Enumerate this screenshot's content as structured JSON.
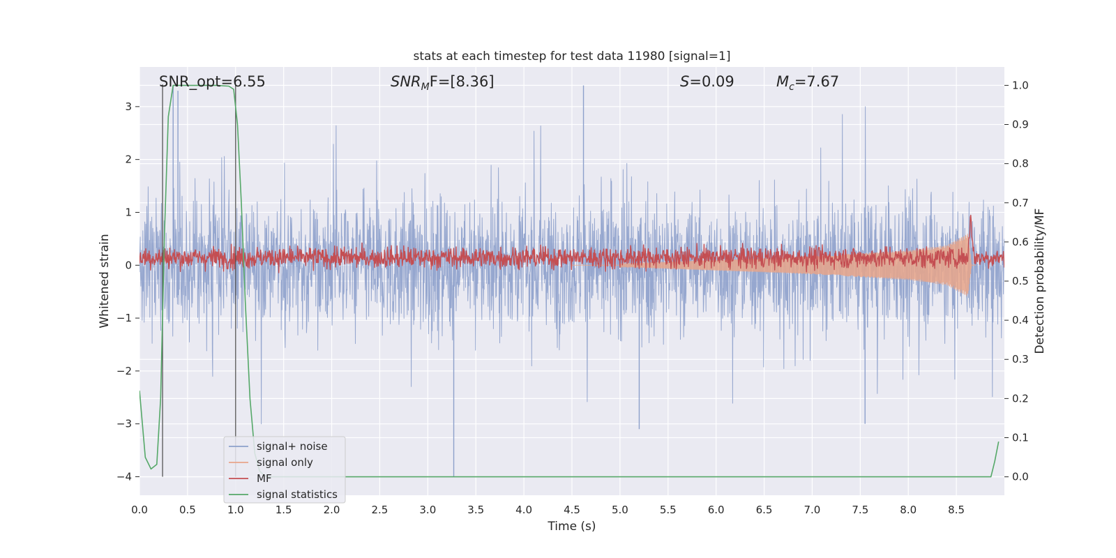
{
  "chart_data": {
    "type": "line",
    "title": "stats at each timestep for test data 11980 [signal=1]",
    "xlabel": "Time (s)",
    "ylabel": "Whitened strain",
    "y2label": "Detection probability/MF",
    "xlim": [
      0.0,
      9.0
    ],
    "ylim": [
      -4.35,
      3.75
    ],
    "y2lim": [
      -0.047,
      1.047
    ],
    "xticks": [
      "0.0",
      "0.5",
      "1.0",
      "1.5",
      "2.0",
      "2.5",
      "3.0",
      "3.5",
      "4.0",
      "4.5",
      "5.0",
      "5.5",
      "6.0",
      "6.5",
      "7.0",
      "7.5",
      "8.0",
      "8.5"
    ],
    "xtick_values": [
      0.0,
      0.5,
      1.0,
      1.5,
      2.0,
      2.5,
      3.0,
      3.5,
      4.0,
      4.5,
      5.0,
      5.5,
      6.0,
      6.5,
      7.0,
      7.5,
      8.0,
      8.5
    ],
    "yticks": [
      "3",
      "2",
      "1",
      "0",
      "−1",
      "−2",
      "−3",
      "−4"
    ],
    "ytick_values": [
      3,
      2,
      1,
      0,
      -1,
      -2,
      -3,
      -4
    ],
    "y2ticks": [
      "1.0",
      "0.9",
      "0.8",
      "0.7",
      "0.6",
      "0.5",
      "0.4",
      "0.3",
      "0.2",
      "0.1",
      "0.0"
    ],
    "y2tick_values": [
      1.0,
      0.9,
      0.8,
      0.7,
      0.6,
      0.5,
      0.4,
      0.3,
      0.2,
      0.1,
      0.0
    ],
    "grid": true,
    "legend_position": "lower-left",
    "annotations": {
      "snr_opt": "SNR_opt=6.55",
      "snr_mf_base": "SNR",
      "snr_mf_sub": "M",
      "snr_mf_rest": "F=[8.36]",
      "s_base": "S",
      "s_rest": "=0.09",
      "mc_base": "M",
      "mc_sub": "c",
      "mc_rest": "=7.67"
    },
    "vertical_lines_x": [
      0.24,
      1.0
    ],
    "series": [
      {
        "name": "signal+ noise",
        "color": "#8da0cb",
        "axis": "left",
        "noise_amplitude_y": [
          -2.4,
          2.4
        ],
        "peaks": [
          [
            0.35,
            3.4
          ],
          [
            0.4,
            3.3
          ],
          [
            3.27,
            -4.0
          ],
          [
            4.62,
            3.4
          ],
          [
            5.2,
            -3.1
          ],
          [
            7.55,
            -3.0
          ]
        ],
        "x_range": [
          0.0,
          9.0
        ]
      },
      {
        "name": "signal only",
        "color": "#e8a58a",
        "axis": "left",
        "envelope_y": [
          [
            5.0,
            0.03
          ],
          [
            6.0,
            0.1
          ],
          [
            7.0,
            0.17
          ],
          [
            8.0,
            0.28
          ],
          [
            8.4,
            0.38
          ],
          [
            8.62,
            0.6
          ],
          [
            8.66,
            0.0
          ]
        ]
      },
      {
        "name": "MF",
        "color": "#c44e52",
        "axis": "right",
        "baseline_y2": 0.56,
        "band_y2": [
          0.535,
          0.595
        ],
        "peak": [
          8.65,
          0.675
        ]
      },
      {
        "name": "signal statistics",
        "color": "#55a868",
        "axis": "right",
        "x": [
          0.0,
          0.06,
          0.12,
          0.18,
          0.22,
          0.26,
          0.3,
          0.35,
          0.45,
          0.6,
          0.8,
          0.93,
          0.98,
          1.02,
          1.06,
          1.1,
          1.15,
          1.2,
          1.25,
          1.3,
          1.35,
          2.0,
          4.0,
          6.0,
          8.0,
          8.86,
          8.9,
          8.94
        ],
        "y": [
          0.22,
          0.05,
          0.02,
          0.032,
          0.2,
          0.62,
          0.92,
          1.0,
          1.0,
          1.0,
          1.0,
          0.998,
          0.99,
          0.9,
          0.7,
          0.45,
          0.2,
          0.06,
          0.015,
          0.003,
          0.0,
          0.0,
          0.0,
          0.0,
          0.0,
          0.0,
          0.04,
          0.09
        ]
      }
    ]
  }
}
